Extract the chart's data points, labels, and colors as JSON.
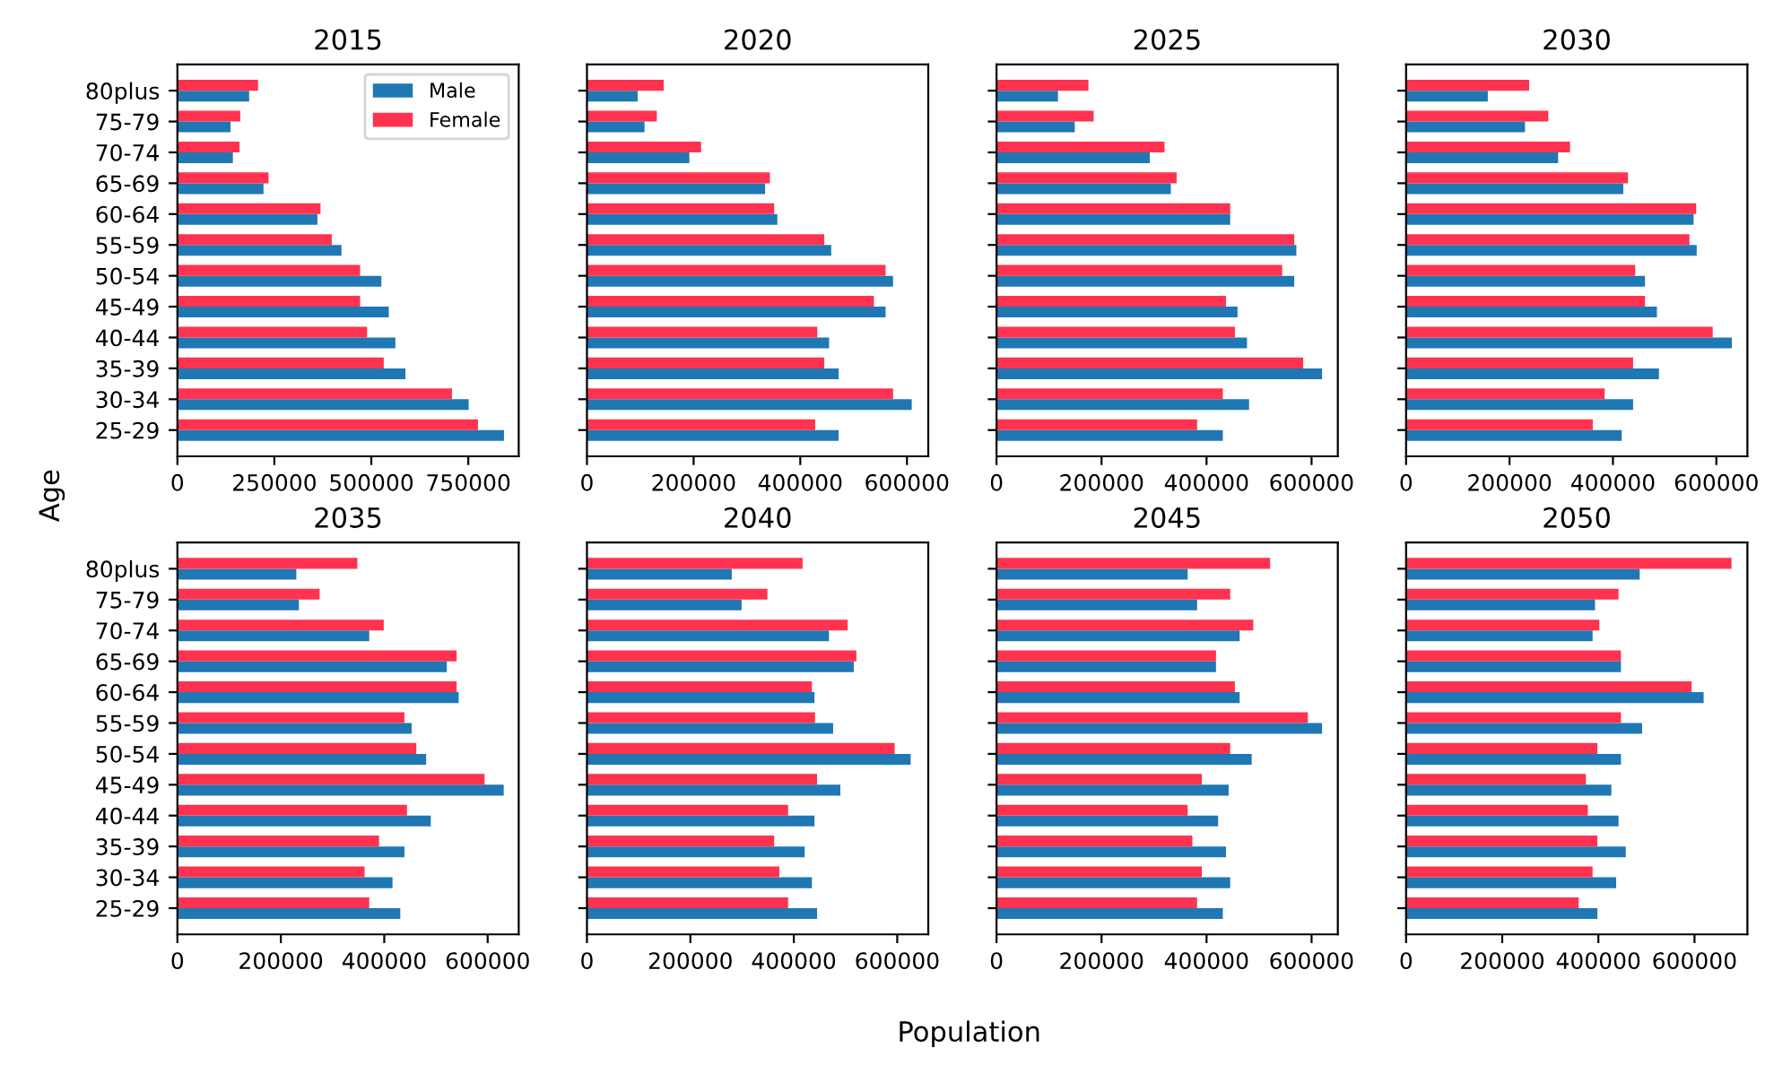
{
  "chart_data": [
    {
      "type": "bar",
      "orientation": "horizontal",
      "title": "2015",
      "ylabel": "Age",
      "legend": "top right",
      "grid": false,
      "categories": [
        "80plus",
        "75-79",
        "70-74",
        "65-69",
        "60-64",
        "55-59",
        "50-54",
        "45-49",
        "40-44",
        "35-39",
        "30-34",
        "25-29"
      ],
      "xlim": [
        0,
        880000
      ],
      "xticks": [
        0,
        250000,
        500000,
        750000
      ],
      "series": [
        {
          "name": "Male",
          "color": "#1f77b4",
          "values": [
            185000,
            137000,
            143000,
            222000,
            361000,
            423000,
            526000,
            545000,
            562000,
            588000,
            751000,
            842000
          ]
        },
        {
          "name": "Female",
          "color": "#ff334f",
          "values": [
            208000,
            162000,
            160000,
            235000,
            369000,
            398000,
            471000,
            471000,
            489000,
            532000,
            708000,
            775000
          ]
        }
      ]
    },
    {
      "type": "bar",
      "orientation": "horizontal",
      "title": "2020",
      "grid": false,
      "categories": [
        null,
        null,
        null,
        null,
        null,
        null,
        null,
        null,
        null,
        null,
        null,
        null
      ],
      "xlim": [
        0,
        640000
      ],
      "xticks": [
        0,
        200000,
        400000,
        600000
      ],
      "series": [
        {
          "color": "#1f77b4",
          "values": [
            95000,
            108000,
            192000,
            334000,
            357000,
            458000,
            574000,
            560000,
            454000,
            472000,
            609000,
            472000
          ]
        },
        {
          "color": "#ff334f",
          "values": [
            144000,
            131000,
            214000,
            343000,
            351000,
            445000,
            560000,
            538000,
            432000,
            445000,
            574000,
            428000
          ]
        }
      ]
    },
    {
      "type": "bar",
      "orientation": "horizontal",
      "title": "2025",
      "grid": false,
      "categories": [
        null,
        null,
        null,
        null,
        null,
        null,
        null,
        null,
        null,
        null,
        null,
        null
      ],
      "xlim": [
        0,
        650000
      ],
      "xticks": [
        0,
        200000,
        400000,
        600000
      ],
      "series": [
        {
          "color": "#1f77b4",
          "values": [
            117000,
            149000,
            292000,
            332000,
            445000,
            571000,
            567000,
            459000,
            477000,
            620000,
            481000,
            431000
          ]
        },
        {
          "color": "#ff334f",
          "values": [
            175000,
            185000,
            320000,
            343000,
            445000,
            567000,
            544000,
            437000,
            454000,
            584000,
            431000,
            382000
          ]
        }
      ]
    },
    {
      "type": "bar",
      "orientation": "horizontal",
      "title": "2030",
      "grid": false,
      "categories": [
        null,
        null,
        null,
        null,
        null,
        null,
        null,
        null,
        null,
        null,
        null,
        null
      ],
      "xlim": [
        0,
        660000
      ],
      "xticks": [
        0,
        200000,
        400000,
        600000
      ],
      "series": [
        {
          "color": "#1f77b4",
          "values": [
            158000,
            230000,
            294000,
            420000,
            556000,
            562000,
            462000,
            485000,
            630000,
            489000,
            439000,
            417000
          ]
        },
        {
          "color": "#ff334f",
          "values": [
            238000,
            275000,
            317000,
            429000,
            561000,
            548000,
            443000,
            462000,
            593000,
            439000,
            384000,
            361000
          ]
        }
      ]
    },
    {
      "type": "bar",
      "orientation": "horizontal",
      "title": "2035",
      "grid": false,
      "categories": [
        "80plus",
        "75-79",
        "70-74",
        "65-69",
        "60-64",
        "55-59",
        "50-54",
        "45-49",
        "40-44",
        "35-39",
        "30-34",
        "25-29"
      ],
      "xlim": [
        0,
        660000
      ],
      "xticks": [
        0,
        200000,
        400000,
        600000
      ],
      "series": [
        {
          "color": "#1f77b4",
          "values": [
            230000,
            235000,
            371000,
            521000,
            544000,
            453000,
            481000,
            631000,
            490000,
            439000,
            416000,
            431000
          ]
        },
        {
          "color": "#ff334f",
          "values": [
            348000,
            275000,
            399000,
            540000,
            540000,
            439000,
            462000,
            594000,
            444000,
            390000,
            362000,
            371000
          ]
        }
      ]
    },
    {
      "type": "bar",
      "orientation": "horizontal",
      "title": "2040",
      "xlabel": "Population",
      "grid": false,
      "categories": [
        null,
        null,
        null,
        null,
        null,
        null,
        null,
        null,
        null,
        null,
        null,
        null
      ],
      "xlim": [
        0,
        660000
      ],
      "xticks": [
        0,
        200000,
        400000,
        600000
      ],
      "series": [
        {
          "color": "#1f77b4",
          "values": [
            280000,
            299000,
            468000,
            516000,
            440000,
            476000,
            626000,
            490000,
            440000,
            421000,
            435000,
            445000
          ]
        },
        {
          "color": "#ff334f",
          "values": [
            417000,
            349000,
            504000,
            521000,
            435000,
            441000,
            595000,
            445000,
            389000,
            362000,
            372000,
            389000
          ]
        }
      ]
    },
    {
      "type": "bar",
      "orientation": "horizontal",
      "title": "2045",
      "grid": false,
      "categories": [
        null,
        null,
        null,
        null,
        null,
        null,
        null,
        null,
        null,
        null,
        null,
        null
      ],
      "xlim": [
        0,
        650000
      ],
      "xticks": [
        0,
        200000,
        400000,
        600000
      ],
      "series": [
        {
          "color": "#1f77b4",
          "values": [
            364000,
            382000,
            463000,
            418000,
            463000,
            620000,
            486000,
            442000,
            422000,
            437000,
            445000,
            431000
          ]
        },
        {
          "color": "#ff334f",
          "values": [
            521000,
            445000,
            489000,
            418000,
            454000,
            593000,
            445000,
            391000,
            364000,
            373000,
            391000,
            382000
          ]
        }
      ]
    },
    {
      "type": "bar",
      "orientation": "horizontal",
      "title": "2050",
      "grid": false,
      "categories": [
        null,
        null,
        null,
        null,
        null,
        null,
        null,
        null,
        null,
        null,
        null,
        null
      ],
      "xlim": [
        0,
        710000
      ],
      "xticks": [
        0,
        200000,
        400000,
        600000
      ],
      "series": [
        {
          "color": "#1f77b4",
          "values": [
            486000,
            393000,
            388000,
            447000,
            619000,
            491000,
            447000,
            427000,
            442000,
            457000,
            437000,
            398000
          ]
        },
        {
          "color": "#ff334f",
          "values": [
            677000,
            442000,
            402000,
            447000,
            594000,
            447000,
            398000,
            374000,
            378000,
            398000,
            388000,
            359000
          ]
        }
      ]
    }
  ]
}
